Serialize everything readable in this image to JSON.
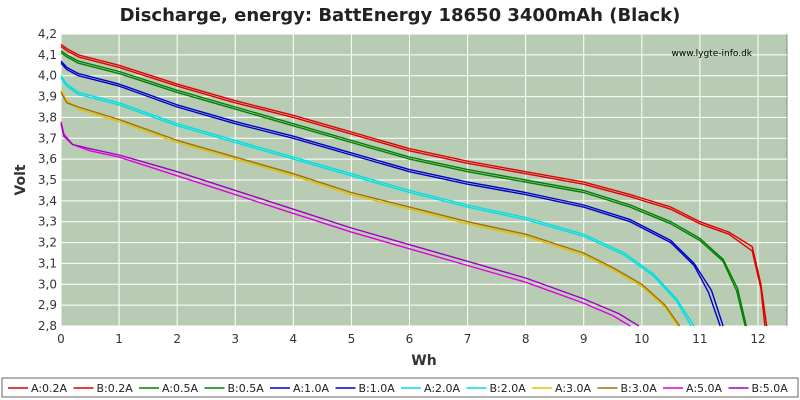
{
  "chart_data": {
    "type": "line",
    "title": "Discharge, energy: BattEnergy 18650 3400mAh (Black)",
    "watermark": "www.lygte-info.dk",
    "xlabel": "Wh",
    "ylabel": "Volt",
    "xlim": [
      0,
      12.5
    ],
    "ylim": [
      2.8,
      4.2
    ],
    "xticks": [
      0,
      1,
      2,
      3,
      4,
      5,
      6,
      7,
      8,
      9,
      10,
      11,
      12
    ],
    "yticks": [
      2.8,
      2.9,
      3.0,
      3.1,
      3.2,
      3.3,
      3.4,
      3.5,
      3.6,
      3.7,
      3.8,
      3.9,
      4.0,
      4.1,
      4.2
    ],
    "yticklabels": [
      "2,8",
      "2,9",
      "3,0",
      "3,1",
      "3,2",
      "3,3",
      "3,4",
      "3,5",
      "3,6",
      "3,7",
      "3,8",
      "3,9",
      "4,0",
      "4,1",
      "4,2"
    ],
    "grid": true,
    "legend_position": "bottom",
    "colors": {
      "plot_background": "#b8ccb4",
      "grid": "#ffffff",
      "page_background": "#ffffff"
    },
    "series": [
      {
        "name": "A:0.2A",
        "color": "#e00000",
        "x": [
          0,
          0.1,
          0.3,
          1,
          2,
          3,
          4,
          5,
          6,
          7,
          8,
          9,
          9.8,
          10.5,
          11,
          11.5,
          11.9,
          12.05,
          12.15
        ],
        "y": [
          4.15,
          4.13,
          4.1,
          4.05,
          3.96,
          3.88,
          3.81,
          3.73,
          3.65,
          3.59,
          3.54,
          3.49,
          3.43,
          3.37,
          3.3,
          3.25,
          3.18,
          3.0,
          2.8
        ]
      },
      {
        "name": "B:0.2A",
        "color": "#e00000",
        "x": [
          0,
          0.1,
          0.3,
          1,
          2,
          3,
          4,
          5,
          6,
          7,
          8,
          9,
          9.8,
          10.5,
          11,
          11.5,
          11.9,
          12.05,
          12.12
        ],
        "y": [
          4.14,
          4.12,
          4.09,
          4.04,
          3.95,
          3.87,
          3.8,
          3.72,
          3.64,
          3.58,
          3.53,
          3.48,
          3.42,
          3.36,
          3.29,
          3.24,
          3.16,
          2.98,
          2.8
        ]
      },
      {
        "name": "A:0.5A",
        "color": "#008000",
        "x": [
          0,
          0.1,
          0.3,
          1,
          2,
          3,
          4,
          5,
          6,
          7,
          8,
          9,
          9.8,
          10.5,
          11,
          11.4,
          11.65,
          11.8
        ],
        "y": [
          4.12,
          4.1,
          4.07,
          4.02,
          3.93,
          3.85,
          3.77,
          3.69,
          3.61,
          3.55,
          3.5,
          3.45,
          3.38,
          3.3,
          3.22,
          3.12,
          2.98,
          2.8
        ]
      },
      {
        "name": "B:0.5A",
        "color": "#008000",
        "x": [
          0,
          0.1,
          0.3,
          1,
          2,
          3,
          4,
          5,
          6,
          7,
          8,
          9,
          9.8,
          10.5,
          11,
          11.4,
          11.63,
          11.78
        ],
        "y": [
          4.11,
          4.09,
          4.06,
          4.01,
          3.92,
          3.84,
          3.76,
          3.68,
          3.6,
          3.54,
          3.49,
          3.44,
          3.37,
          3.29,
          3.21,
          3.11,
          2.97,
          2.8
        ]
      },
      {
        "name": "A:1.0A",
        "color": "#0000c8",
        "x": [
          0,
          0.1,
          0.3,
          1,
          2,
          3,
          4,
          5,
          6,
          7,
          8,
          9,
          9.8,
          10.5,
          10.9,
          11.2,
          11.4
        ],
        "y": [
          4.07,
          4.04,
          4.01,
          3.96,
          3.86,
          3.78,
          3.71,
          3.63,
          3.55,
          3.49,
          3.44,
          3.38,
          3.31,
          3.21,
          3.1,
          2.97,
          2.8
        ]
      },
      {
        "name": "B:1.0A",
        "color": "#0000c8",
        "x": [
          0,
          0.1,
          0.3,
          1,
          2,
          3,
          4,
          5,
          6,
          7,
          8,
          9,
          9.8,
          10.5,
          10.9,
          11.15,
          11.35
        ],
        "y": [
          4.06,
          4.03,
          4.0,
          3.95,
          3.85,
          3.77,
          3.7,
          3.62,
          3.54,
          3.48,
          3.43,
          3.37,
          3.3,
          3.2,
          3.09,
          2.96,
          2.8
        ]
      },
      {
        "name": "A:2.0A",
        "color": "#00e0e0",
        "x": [
          0,
          0.1,
          0.3,
          1,
          2,
          3,
          4,
          5,
          6,
          7,
          8,
          9,
          9.7,
          10.2,
          10.6,
          10.9
        ],
        "y": [
          4.0,
          3.96,
          3.92,
          3.87,
          3.77,
          3.69,
          3.61,
          3.53,
          3.45,
          3.38,
          3.32,
          3.24,
          3.15,
          3.05,
          2.93,
          2.8
        ]
      },
      {
        "name": "B:2.0A",
        "color": "#00e0e0",
        "x": [
          0,
          0.1,
          0.3,
          1,
          2,
          3,
          4,
          5,
          6,
          7,
          8,
          9,
          9.7,
          10.2,
          10.6,
          10.85
        ],
        "y": [
          3.99,
          3.95,
          3.91,
          3.86,
          3.76,
          3.68,
          3.6,
          3.52,
          3.44,
          3.37,
          3.31,
          3.23,
          3.14,
          3.04,
          2.92,
          2.8
        ]
      },
      {
        "name": "A:3.0A",
        "color": "#e0c000",
        "x": [
          0,
          0.1,
          0.3,
          1,
          2,
          3,
          4,
          5,
          6,
          7,
          8,
          9,
          9.5,
          10,
          10.4,
          10.62
        ],
        "y": [
          3.93,
          3.88,
          3.84,
          3.78,
          3.68,
          3.6,
          3.52,
          3.43,
          3.36,
          3.29,
          3.23,
          3.14,
          3.07,
          2.99,
          2.89,
          2.8
        ]
      },
      {
        "name": "B:3.0A",
        "color": "#a07000",
        "x": [
          0,
          0.1,
          0.3,
          1,
          2,
          3,
          4,
          5,
          6,
          7,
          8,
          9,
          9.5,
          10,
          10.4,
          10.65
        ],
        "y": [
          3.92,
          3.87,
          3.85,
          3.79,
          3.69,
          3.61,
          3.53,
          3.44,
          3.37,
          3.3,
          3.24,
          3.15,
          3.08,
          3.0,
          2.9,
          2.8
        ]
      },
      {
        "name": "A:5.0A",
        "color": "#e000e0",
        "x": [
          0,
          0.05,
          0.2,
          0.5,
          1,
          2,
          3,
          4,
          5,
          6,
          7,
          8,
          9,
          9.5,
          9.8
        ],
        "y": [
          3.78,
          3.72,
          3.67,
          3.64,
          3.61,
          3.52,
          3.43,
          3.34,
          3.25,
          3.17,
          3.09,
          3.01,
          2.91,
          2.85,
          2.8
        ]
      },
      {
        "name": "B:5.0A",
        "color": "#a000c0",
        "x": [
          0,
          0.05,
          0.2,
          0.5,
          1,
          2,
          3,
          4,
          5,
          6,
          7,
          8,
          9,
          9.6,
          9.95
        ],
        "y": [
          3.77,
          3.71,
          3.67,
          3.65,
          3.62,
          3.54,
          3.45,
          3.36,
          3.27,
          3.19,
          3.11,
          3.03,
          2.93,
          2.86,
          2.8
        ]
      }
    ]
  }
}
